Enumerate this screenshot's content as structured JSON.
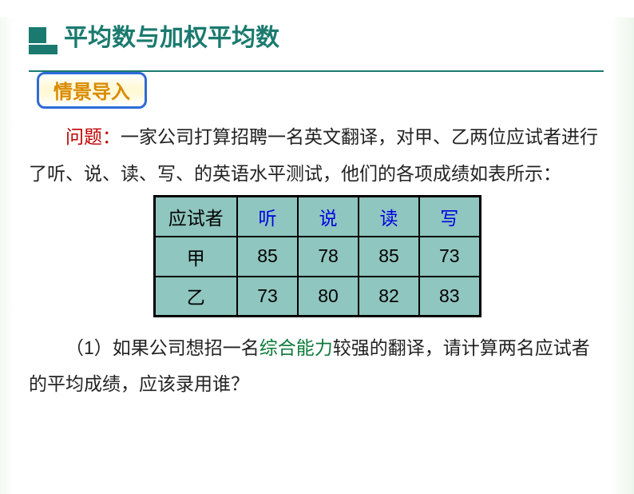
{
  "title": "平均数与加权平均数",
  "section_badge": "情景导入",
  "problem_label": "问题：",
  "problem_text": "一家公司打算招聘一名英文翻译，对甲、乙两位应试者进行了听、说、读、写、的英语水平测试，他们的各项成绩如表所示：",
  "table": {
    "row_header": "应试者",
    "columns": [
      "听",
      "说",
      "读",
      "写"
    ],
    "rows": [
      {
        "name": "甲",
        "values": [
          "85",
          "78",
          "85",
          "73"
        ]
      },
      {
        "name": "乙",
        "values": [
          "73",
          "80",
          "82",
          "83"
        ]
      }
    ],
    "header_bg": "#8fc6bf",
    "cell_bg": "#8fc6bf",
    "header_text_color": "#0000e0",
    "border_color": "#000000"
  },
  "question1_pre": "（1）如果公司想招一名",
  "question1_emph": "综合能力",
  "question1_post": "较强的翻译，请计算两名应试者的平均成绩，应该录用谁？",
  "colors": {
    "accent": "#1a7a6f",
    "badge_border": "#2e6bd6",
    "badge_text": "#d98a00",
    "wenti": "#c00000",
    "emph": "#0d7a3a"
  }
}
